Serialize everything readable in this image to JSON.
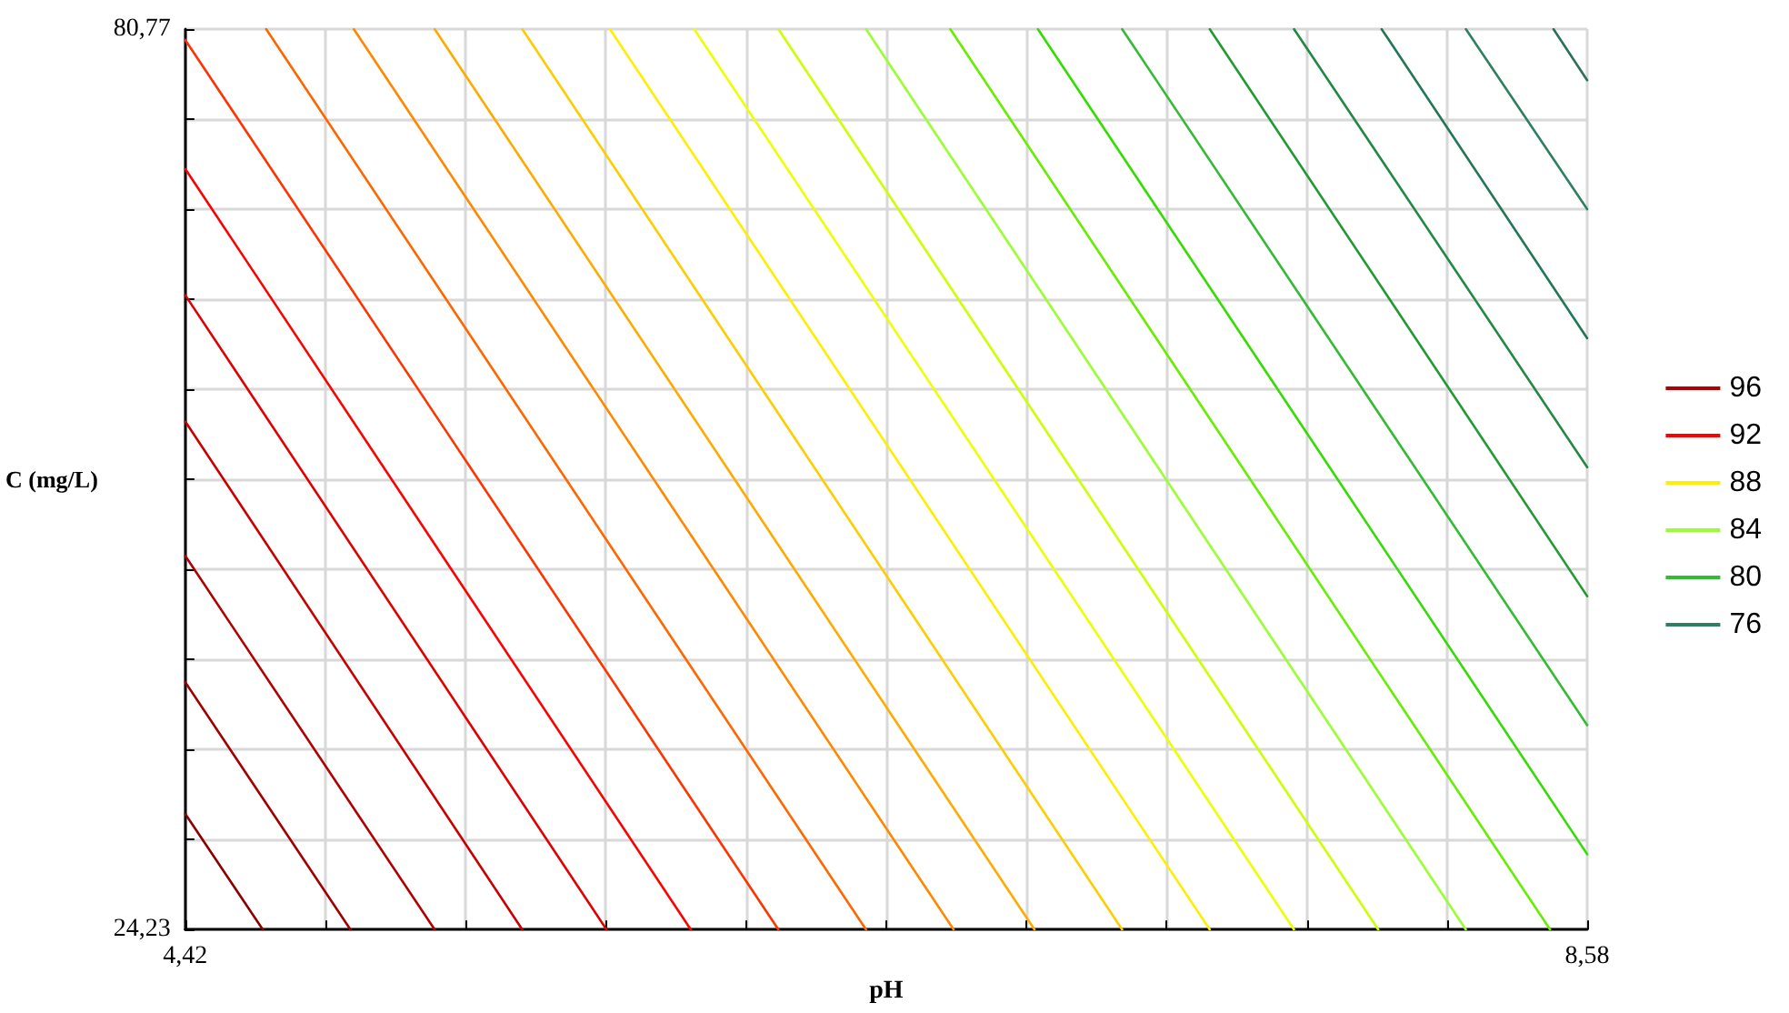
{
  "chart_data": {
    "type": "line",
    "xlabel": "pH",
    "ylabel": "C (mg/L)",
    "xlim": [
      4.42,
      8.58
    ],
    "ylim": [
      24.23,
      80.77
    ],
    "xticks": [
      {
        "value": 4.42,
        "label": "4,42"
      },
      {
        "value": 4.836,
        "label": null
      },
      {
        "value": 5.252,
        "label": null
      },
      {
        "value": 5.668,
        "label": null
      },
      {
        "value": 6.084,
        "label": null
      },
      {
        "value": 6.5,
        "label": null
      },
      {
        "value": 6.916,
        "label": null
      },
      {
        "value": 7.332,
        "label": null
      },
      {
        "value": 7.748,
        "label": null
      },
      {
        "value": 8.164,
        "label": null
      },
      {
        "value": 8.58,
        "label": "8,58"
      }
    ],
    "yticks": [
      {
        "value": 24.23,
        "label": "24,23"
      },
      {
        "value": 29.884,
        "label": null
      },
      {
        "value": 35.538,
        "label": null
      },
      {
        "value": 41.192,
        "label": null
      },
      {
        "value": 46.846,
        "label": null
      },
      {
        "value": 52.5,
        "label": null
      },
      {
        "value": 58.154,
        "label": null
      },
      {
        "value": 63.808,
        "label": null
      },
      {
        "value": 69.462,
        "label": null
      },
      {
        "value": 75.116,
        "label": null
      },
      {
        "value": 80.77,
        "label": "80,77"
      }
    ],
    "grid": true,
    "legend": "right",
    "marker": "none",
    "series": [
      {
        "color": "#8b0000",
        "x": [
          4.42,
          4.65
        ],
        "values": [
          31.49,
          24.23
        ]
      },
      {
        "color": "#a00000",
        "x": [
          4.42,
          4.91
        ],
        "values": [
          39.76,
          24.23
        ]
      },
      {
        "name": "96",
        "color": "#b00000",
        "x": [
          4.42,
          5.16
        ],
        "values": [
          47.69,
          24.23
        ]
      },
      {
        "color": "#c80000",
        "x": [
          4.42,
          5.42
        ],
        "values": [
          56.13,
          24.23
        ]
      },
      {
        "color": "#e00000",
        "x": [
          4.42,
          5.67
        ],
        "values": [
          64.06,
          24.23
        ]
      },
      {
        "name": "92",
        "color": "#ff0000",
        "x": [
          4.42,
          5.92
        ],
        "values": [
          71.99,
          24.23
        ]
      },
      {
        "color": "#ff3300",
        "x": [
          4.42,
          6.18
        ],
        "values": [
          80.09,
          24.23
        ]
      },
      {
        "color": "#ff6600",
        "x": [
          4.66,
          6.44
        ],
        "values": [
          80.77,
          24.23
        ]
      },
      {
        "color": "#ff8800",
        "x": [
          4.92,
          6.7
        ],
        "values": [
          80.77,
          24.23
        ]
      },
      {
        "color": "#ffaa00",
        "x": [
          5.16,
          6.94
        ],
        "values": [
          80.77,
          24.23
        ]
      },
      {
        "color": "#ffcc00",
        "x": [
          5.42,
          7.2
        ],
        "values": [
          80.77,
          24.23
        ]
      },
      {
        "name": "88",
        "color": "#ffee00",
        "x": [
          5.68,
          7.46
        ],
        "values": [
          80.77,
          24.23
        ]
      },
      {
        "color": "#eeff00",
        "x": [
          5.93,
          7.71
        ],
        "values": [
          80.77,
          24.23
        ]
      },
      {
        "color": "#ccff00",
        "x": [
          6.18,
          7.96
        ],
        "values": [
          80.77,
          24.23
        ]
      },
      {
        "name": "84",
        "color": "#99ff33",
        "x": [
          6.44,
          8.22
        ],
        "values": [
          80.77,
          24.23
        ]
      },
      {
        "color": "#66ee00",
        "x": [
          6.69,
          8.47
        ],
        "values": [
          80.77,
          24.23
        ]
      },
      {
        "color": "#33dd00",
        "x": [
          6.95,
          8.58
        ],
        "values": [
          80.77,
          28.96
        ]
      },
      {
        "name": "80",
        "color": "#33bb33",
        "x": [
          7.2,
          8.58
        ],
        "values": [
          80.77,
          37.06
        ]
      },
      {
        "color": "#229933",
        "x": [
          7.46,
          8.58
        ],
        "values": [
          80.77,
          45.16
        ]
      },
      {
        "color": "#228844",
        "x": [
          7.71,
          8.58
        ],
        "values": [
          80.77,
          53.26
        ]
      },
      {
        "color": "#227755",
        "x": [
          7.97,
          8.58
        ],
        "values": [
          80.77,
          61.36
        ]
      },
      {
        "name": "76",
        "color": "#2e8060",
        "x": [
          8.22,
          8.58
        ],
        "values": [
          80.77,
          69.46
        ]
      },
      {
        "color": "#2e6f5a",
        "x": [
          8.48,
          8.58
        ],
        "values": [
          80.77,
          77.56
        ]
      }
    ]
  }
}
